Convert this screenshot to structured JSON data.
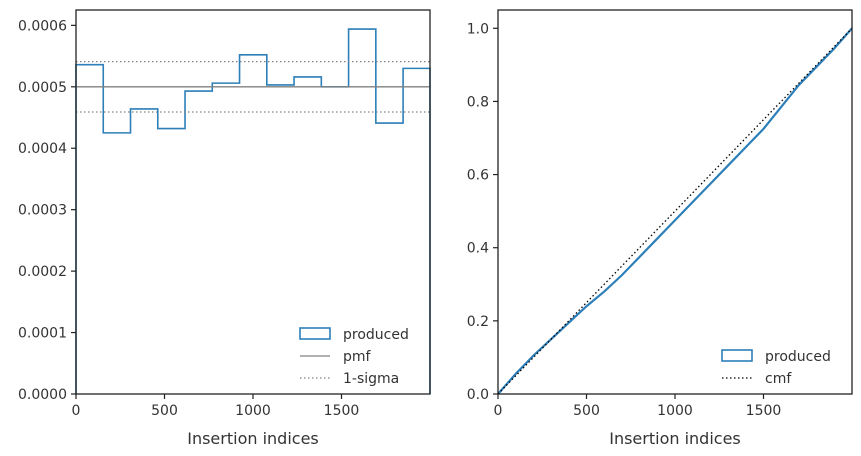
{
  "chart_data": [
    {
      "type": "step",
      "xlabel": "Insertion indices",
      "ylabel": "",
      "xlim": [
        0,
        2000
      ],
      "ylim": [
        0,
        0.000625
      ],
      "xticks": [
        0,
        500,
        1000,
        1500
      ],
      "xtick_labels": [
        "0",
        "500",
        "1000",
        "1500"
      ],
      "yticks": [
        0,
        0.0001,
        0.0002,
        0.0003,
        0.0004,
        0.0005,
        0.0006
      ],
      "ytick_labels": [
        "0.0000",
        "0.0001",
        "0.0002",
        "0.0003",
        "0.0004",
        "0.0005",
        "0.0006"
      ],
      "legend_position": "lower-right",
      "series": [
        {
          "name": "produced",
          "kind": "histogram-step",
          "color": "#2c7fb8",
          "bin_edges": [
            0,
            154,
            308,
            462,
            616,
            770,
            924,
            1078,
            1232,
            1386,
            1540,
            1694,
            1848,
            2000
          ],
          "values": [
            0.000536,
            0.000425,
            0.000464,
            0.000432,
            0.000493,
            0.000506,
            0.000552,
            0.000503,
            0.000516,
            0.0005,
            0.000594,
            0.000441,
            0.00053
          ]
        },
        {
          "name": "pmf",
          "kind": "hline",
          "color": "#808080",
          "y": 0.0005
        },
        {
          "name": "1-sigma",
          "kind": "hline-dotted",
          "color": "#808080",
          "y": [
            0.000459,
            0.000541
          ]
        }
      ]
    },
    {
      "type": "line",
      "xlabel": "Insertion indices",
      "ylabel": "",
      "xlim": [
        0,
        2000
      ],
      "ylim": [
        0,
        1.05
      ],
      "xticks": [
        0,
        500,
        1000,
        1500
      ],
      "xtick_labels": [
        "0",
        "500",
        "1000",
        "1500"
      ],
      "yticks": [
        0,
        0.2,
        0.4,
        0.6,
        0.8,
        1.0
      ],
      "ytick_labels": [
        "0.0",
        "0.2",
        "0.4",
        "0.6",
        "0.8",
        "1.0"
      ],
      "legend_position": "lower-right",
      "series": [
        {
          "name": "produced",
          "kind": "cumulative",
          "color": "#2c7fb8",
          "x": [
            0,
            100,
            200,
            300,
            400,
            500,
            600,
            700,
            800,
            900,
            1000,
            1100,
            1200,
            1300,
            1400,
            1500,
            1600,
            1700,
            1800,
            1900,
            2000
          ],
          "y": [
            0,
            0.055,
            0.105,
            0.15,
            0.195,
            0.24,
            0.28,
            0.325,
            0.375,
            0.425,
            0.475,
            0.525,
            0.575,
            0.625,
            0.675,
            0.725,
            0.785,
            0.845,
            0.895,
            0.945,
            1.0
          ]
        },
        {
          "name": "cmf",
          "kind": "line-dotted",
          "color": "#000000",
          "x": [
            0,
            2000
          ],
          "y": [
            0,
            1.0
          ]
        }
      ]
    }
  ]
}
